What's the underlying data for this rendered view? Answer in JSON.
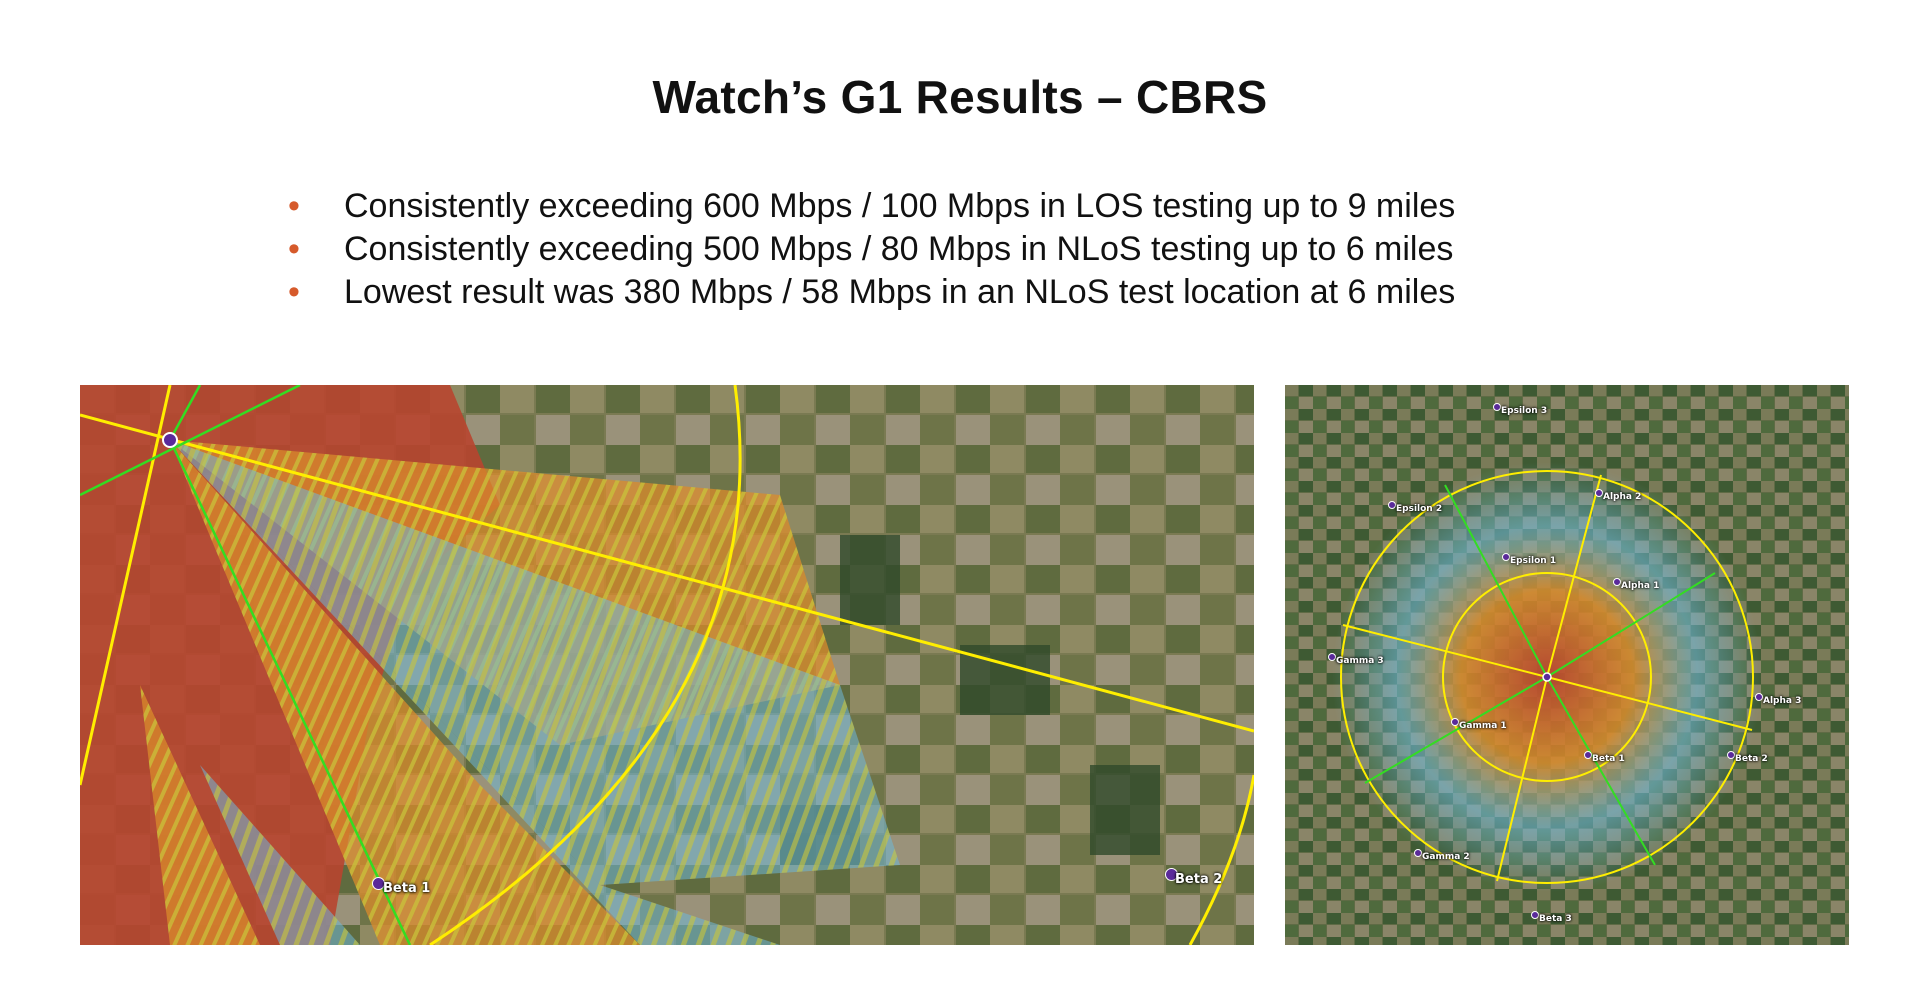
{
  "slide": {
    "title": "Watch’s G1 Results – CBRS",
    "bullet_symbol": "•",
    "bullets": [
      "Consistently exceeding 600 Mbps / 100 Mbps in LOS testing up to 9 miles",
      "Consistently exceeding 500 Mbps / 80 Mbps in NLoS testing up to 6 miles",
      "Lowest result was 380 Mbps / 58 Mbps in an NLoS test location at 6 miles"
    ],
    "accent_color": "#d65a2b"
  },
  "left_map": {
    "labels": [
      "Beta 1",
      "Beta 2"
    ]
  },
  "right_map": {
    "labels": [
      "Epsilon 3",
      "Alpha 2",
      "Epsilon 2",
      "Epsilon 1",
      "Alpha 1",
      "Gamma 3",
      "Alpha 3",
      "Gamma 1",
      "Beta 1",
      "Beta 2",
      "Gamma 2",
      "Beta 3"
    ]
  },
  "colors": {
    "coverage_red": "#b8452f",
    "coverage_orange": "#d98b2b",
    "coverage_yellow": "#c9c63a",
    "coverage_blue": "#6fb8d6",
    "ring_yellow": "#ffee00",
    "sector_green": "#33dd22",
    "site_purple": "#5a2a9a"
  }
}
